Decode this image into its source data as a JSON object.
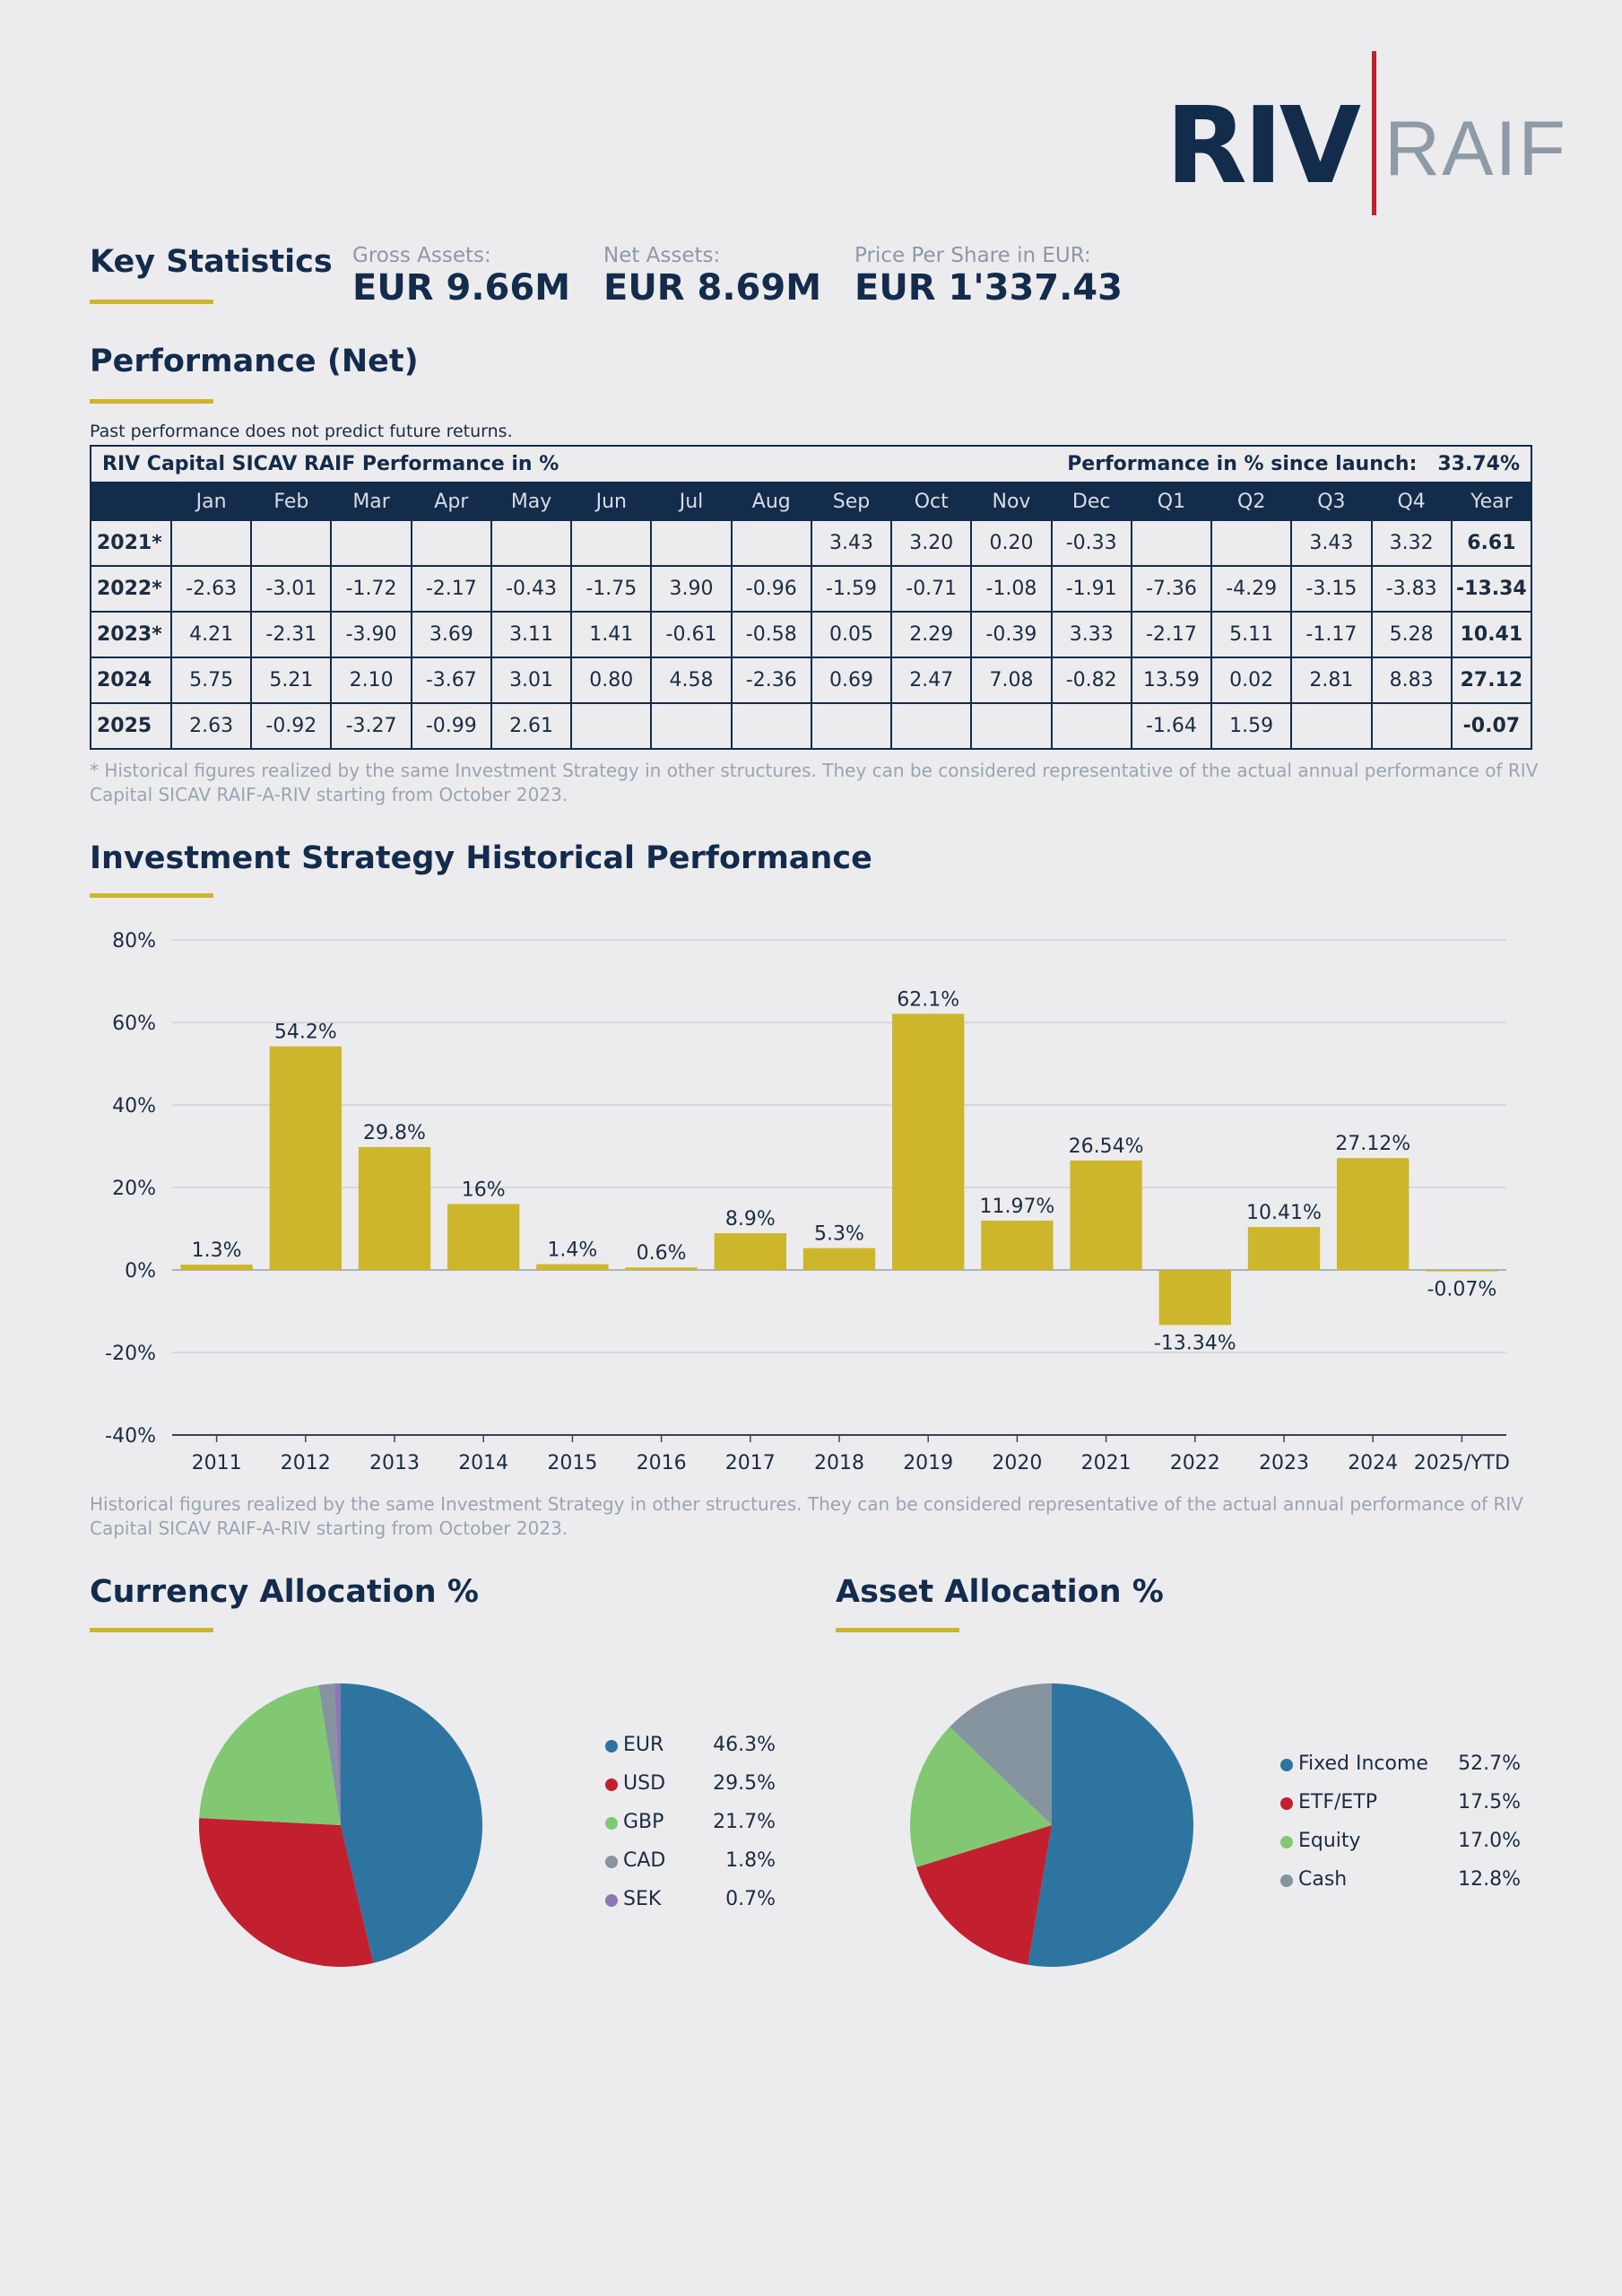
{
  "logo": {
    "part1": "RIV",
    "part2": "RAIF"
  },
  "key_stats": {
    "title": "Key Statistics",
    "gross_label": "Gross Assets:",
    "gross_value": "EUR 9.66M",
    "net_label": "Net Assets:",
    "net_value": "EUR 8.69M",
    "price_label": "Price Per Share in EUR:",
    "price_value": "EUR 1'337.43"
  },
  "performance": {
    "title": "Performance (Net)",
    "disclaimer": "Past performance does not predict future returns.",
    "table_title": "RIV Capital SICAV RAIF Performance in %",
    "since_launch_label": "Performance in % since launch:",
    "since_launch_value": "33.74%",
    "columns": [
      "",
      "Jan",
      "Feb",
      "Mar",
      "Apr",
      "May",
      "Jun",
      "Jul",
      "Aug",
      "Sep",
      "Oct",
      "Nov",
      "Dec",
      "Q1",
      "Q2",
      "Q3",
      "Q4",
      "Year"
    ],
    "rows": [
      [
        "2021*",
        "",
        "",
        "",
        "",
        "",
        "",
        "",
        "",
        "3.43",
        "3.20",
        "0.20",
        "-0.33",
        "",
        "",
        "3.43",
        "3.32",
        "6.61"
      ],
      [
        "2022*",
        "-2.63",
        "-3.01",
        "-1.72",
        "-2.17",
        "-0.43",
        "-1.75",
        "3.90",
        "-0.96",
        "-1.59",
        "-0.71",
        "-1.08",
        "-1.91",
        "-7.36",
        "-4.29",
        "-3.15",
        "-3.83",
        "-13.34"
      ],
      [
        "2023*",
        "4.21",
        "-2.31",
        "-3.90",
        "3.69",
        "3.11",
        "1.41",
        "-0.61",
        "-0.58",
        "0.05",
        "2.29",
        "-0.39",
        "3.33",
        "-2.17",
        "5.11",
        "-1.17",
        "5.28",
        "10.41"
      ],
      [
        "2024",
        "5.75",
        "5.21",
        "2.10",
        "-3.67",
        "3.01",
        "0.80",
        "4.58",
        "-2.36",
        "0.69",
        "2.47",
        "7.08",
        "-0.82",
        "13.59",
        "0.02",
        "2.81",
        "8.83",
        "27.12"
      ],
      [
        "2025",
        "2.63",
        "-0.92",
        "-3.27",
        "-0.99",
        "2.61",
        "",
        "",
        "",
        "",
        "",
        "",
        "",
        "-1.64",
        "1.59",
        "",
        "",
        "-0.07"
      ]
    ],
    "footnote": "* Historical figures realized by the same Investment Strategy in other structures. They can be considered representative of the actual annual performance of RIV Capital SICAV RAIF-A-RIV starting from October 2023."
  },
  "history": {
    "title": "Investment Strategy Historical Performance",
    "footnote": "Historical figures realized by the same Investment Strategy in other structures. They can be considered representative of the actual annual performance of RIV Capital SICAV RAIF-A-RIV starting from October 2023."
  },
  "currency": {
    "title": "Currency Allocation %"
  },
  "asset": {
    "title": "Asset Allocation %"
  },
  "chart_data": [
    {
      "type": "bar",
      "categories": [
        "2011",
        "2012",
        "2013",
        "2014",
        "2015",
        "2016",
        "2017",
        "2018",
        "2019",
        "2020",
        "2021",
        "2022",
        "2023",
        "2024",
        "2025/YTD"
      ],
      "values": [
        1.3,
        54.2,
        29.8,
        16,
        1.4,
        0.6,
        8.9,
        5.3,
        62.1,
        11.97,
        26.54,
        -13.34,
        10.41,
        27.12,
        -0.07
      ],
      "labels": [
        "1.3%",
        "54.2%",
        "29.8%",
        "16%",
        "1.4%",
        "0.6%",
        "8.9%",
        "5.3%",
        "62.1%",
        "11.97%",
        "26.54%",
        "-13.34%",
        "10.41%",
        "27.12%",
        "-0.07%"
      ],
      "yticks": [
        "80%",
        "60%",
        "40%",
        "20%",
        "0%",
        "-20%",
        "-40%"
      ],
      "ylim": [
        -40,
        80
      ],
      "grid": true,
      "color": "#cdb52c"
    },
    {
      "type": "pie",
      "slices": [
        {
          "name": "EUR",
          "value": 46.3,
          "label": "46.3%",
          "color": "#2e74a0"
        },
        {
          "name": "USD",
          "value": 29.5,
          "label": "29.5%",
          "color": "#c2202f"
        },
        {
          "name": "GBP",
          "value": 21.7,
          "label": "21.7%",
          "color": "#82c873"
        },
        {
          "name": "CAD",
          "value": 1.8,
          "label": "1.8%",
          "color": "#85949f"
        },
        {
          "name": "SEK",
          "value": 0.7,
          "label": "0.7%",
          "color": "#8a77b4"
        }
      ]
    },
    {
      "type": "pie",
      "slices": [
        {
          "name": "Fixed Income",
          "value": 52.7,
          "label": "52.7%",
          "color": "#2e74a0"
        },
        {
          "name": "ETF/ETP",
          "value": 17.5,
          "label": "17.5%",
          "color": "#c2202f"
        },
        {
          "name": "Equity",
          "value": 17.0,
          "label": "17.0%",
          "color": "#82c873"
        },
        {
          "name": "Cash",
          "value": 12.8,
          "label": "12.8%",
          "color": "#85949f"
        }
      ]
    }
  ]
}
